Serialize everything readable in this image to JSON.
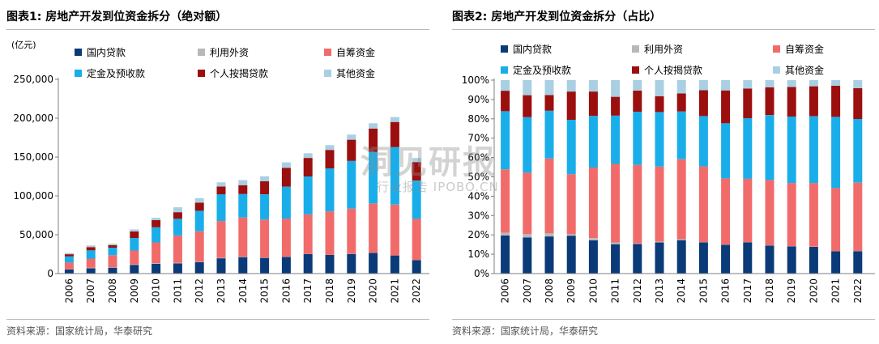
{
  "colors": {
    "domestic_loans": "#0b3a78",
    "foreign_capital": "#b8b8b8",
    "self_raised": "#f26b6b",
    "deposits_advance": "#19aeea",
    "mortgage_loans": "#9b0f0f",
    "other_funds": "#a9d0e2"
  },
  "source_text": "资料来源：国家统计局，华泰研究",
  "watermark": {
    "main": "洞见研报",
    "sub": "行业报告 IPOBO.CN"
  },
  "chart_data": [
    {
      "type": "bar",
      "stacked": true,
      "title": "图表1:  房地产开发到位资金拆分（绝对额）",
      "unit_label": "(亿元)",
      "ylim": [
        0,
        250000
      ],
      "yticks": [
        0,
        50000,
        100000,
        150000,
        200000,
        250000
      ],
      "ytick_labels": [
        "0",
        "50,000",
        "100,000",
        "150,000",
        "200,000",
        "250,000"
      ],
      "legend_position": "top",
      "categories": [
        "2006",
        "2007",
        "2008",
        "2009",
        "2010",
        "2011",
        "2012",
        "2013",
        "2014",
        "2015",
        "2016",
        "2017",
        "2018",
        "2019",
        "2020",
        "2021",
        "2022"
      ],
      "series": [
        {
          "name": "国内贷款",
          "color_key": "domestic_loans",
          "values": [
            5200,
            6900,
            7600,
            11300,
            12600,
            13100,
            14800,
            19700,
            21200,
            20200,
            21500,
            25200,
            24000,
            25200,
            26700,
            23300,
            17400
          ]
        },
        {
          "name": "利用外资",
          "color_key": "foreign_capital",
          "values": [
            400,
            600,
            700,
            500,
            800,
            800,
            400,
            500,
            600,
            300,
            100,
            200,
            100,
            200,
            200,
            100,
            100
          ]
        },
        {
          "name": "自筹资金",
          "color_key": "self_raised",
          "values": [
            8600,
            11800,
            15300,
            17900,
            26700,
            35100,
            39100,
            47400,
            50400,
            49000,
            49100,
            50900,
            56000,
            58200,
            63400,
            65400,
            52900
          ]
        },
        {
          "name": "定金及预收款",
          "color_key": "deposits_advance",
          "values": [
            7900,
            10600,
            9800,
            16200,
            19500,
            21600,
            26600,
            34500,
            30200,
            32500,
            41000,
            48700,
            55400,
            61400,
            66500,
            73900,
            49300
          ]
        },
        {
          "name": "个人按揭贷款",
          "color_key": "mortgage_loans",
          "values": [
            2800,
            4200,
            3200,
            8400,
            9200,
            8400,
            10500,
            10000,
            11400,
            16700,
            24400,
            23900,
            23700,
            27300,
            29900,
            32400,
            23800
          ]
        },
        {
          "name": "其他资金",
          "color_key": "other_funds",
          "values": [
            1600,
            2100,
            1900,
            2600,
            3100,
            6300,
            5700,
            5300,
            6500,
            6500,
            7000,
            6000,
            6100,
            6600,
            6700,
            6300,
            5200
          ]
        }
      ]
    },
    {
      "type": "bar",
      "stacked": true,
      "title": "图表2:  房地产开发到位资金拆分（占比）",
      "ylim": [
        0,
        100
      ],
      "yticks": [
        0,
        10,
        20,
        30,
        40,
        50,
        60,
        70,
        80,
        90,
        100
      ],
      "ytick_labels": [
        "0%",
        "10%",
        "20%",
        "30%",
        "40%",
        "50%",
        "60%",
        "70%",
        "80%",
        "90%",
        "100%"
      ],
      "legend_position": "top",
      "categories": [
        "2006",
        "2007",
        "2008",
        "2009",
        "2010",
        "2011",
        "2012",
        "2013",
        "2014",
        "2015",
        "2016",
        "2017",
        "2018",
        "2019",
        "2020",
        "2021",
        "2022"
      ],
      "series": [
        {
          "name": "国内贷款",
          "color_key": "domestic_loans",
          "values": [
            19.7,
            18.7,
            19.2,
            19.6,
            17.2,
            15.2,
            15.3,
            16.1,
            17.3,
            16.1,
            14.9,
            16.2,
            14.5,
            14.1,
            13.8,
            11.6,
            11.6
          ]
        },
        {
          "name": "利用外资",
          "color_key": "foreign_capital",
          "values": [
            1.5,
            1.7,
            1.7,
            0.8,
            1.1,
            0.9,
            0.4,
            0.4,
            0.5,
            0.2,
            0.1,
            0.1,
            0.1,
            0.1,
            0.1,
            0.1,
            0.1
          ]
        },
        {
          "name": "自筹资金",
          "color_key": "self_raised",
          "values": [
            32.7,
            31.8,
            38.6,
            31.0,
            36.5,
            40.6,
            40.5,
            38.8,
            41.3,
            39.1,
            34.2,
            32.7,
            33.8,
            32.6,
            32.9,
            32.5,
            35.3
          ]
        },
        {
          "name": "定金及预收款",
          "color_key": "deposits_advance",
          "values": [
            30.0,
            28.6,
            24.7,
            28.1,
            26.7,
            25.0,
            27.5,
            28.2,
            24.7,
            26.0,
            28.5,
            31.3,
            33.5,
            34.4,
            34.5,
            36.8,
            32.9
          ]
        },
        {
          "name": "个人按揭贷款",
          "color_key": "mortgage_loans",
          "values": [
            10.6,
            11.4,
            8.1,
            14.6,
            12.6,
            9.7,
            10.9,
            8.2,
            9.3,
            13.4,
            17.0,
            15.4,
            14.4,
            15.3,
            15.5,
            16.1,
            15.9
          ]
        },
        {
          "name": "其他资金",
          "color_key": "other_funds",
          "values": [
            5.5,
            7.8,
            7.7,
            5.9,
            5.9,
            8.6,
            5.4,
            8.3,
            6.9,
            5.2,
            5.3,
            4.3,
            3.7,
            3.5,
            3.2,
            2.9,
            4.2
          ]
        }
      ]
    }
  ]
}
